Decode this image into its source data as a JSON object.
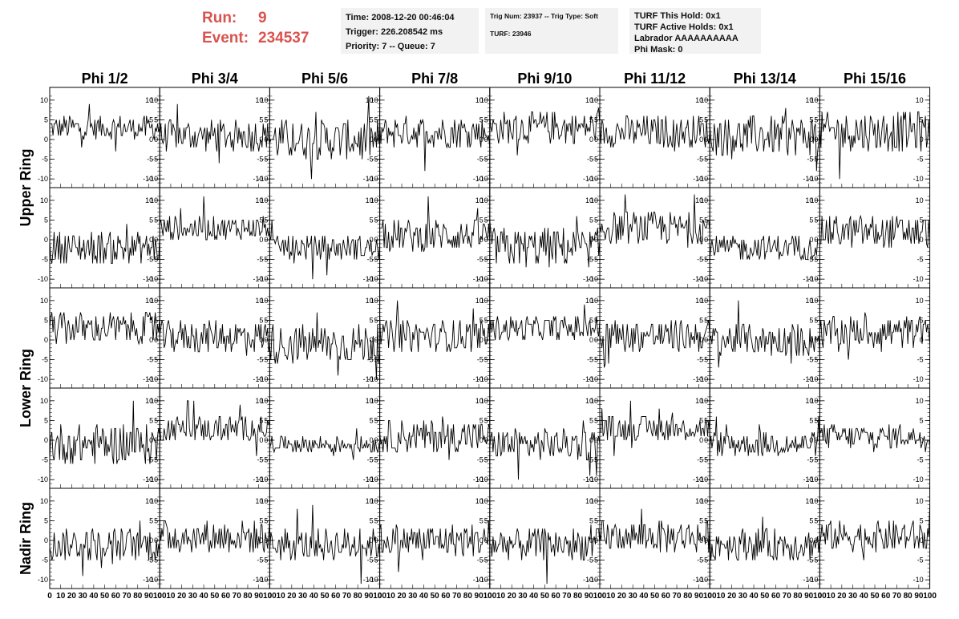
{
  "header": {
    "run_label": "Run:",
    "run_value": "9",
    "event_label": "Event:",
    "event_value": "234537",
    "time": "Time: 2008-12-20 00:46:04",
    "trigger": "Trigger: 226.208542 ms",
    "priority": "Priority: 7 -- Queue: 7",
    "trig_num": "Trig Num: 23937 -- Trig Type: Soft",
    "turf": "TURF: 23946",
    "turf_this_hold": "TURF This Hold: 0x1",
    "turf_active_holds": "TURF Active Holds: 0x1",
    "labrador": "Labrador AAAAAAAAAA",
    "phi_mask": "Phi Mask: 0"
  },
  "columns": [
    "Phi 1/2",
    "Phi 3/4",
    "Phi 5/6",
    "Phi 7/8",
    "Phi 9/10",
    "Phi 11/12",
    "Phi 13/14",
    "Phi 15/16"
  ],
  "row_groups": [
    {
      "label": "Upper Ring",
      "rows": 2
    },
    {
      "label": "Lower Ring",
      "rows": 2
    },
    {
      "label": "Nadir Ring",
      "rows": 1
    }
  ],
  "chart_data": {
    "type": "line",
    "panels_rows": 5,
    "panels_cols": 8,
    "xlim": [
      0,
      100
    ],
    "ylim": [
      -12,
      12
    ],
    "y_ticks": [
      -10,
      -5,
      0,
      5,
      10
    ],
    "x_ticks": [
      0,
      10,
      20,
      30,
      40,
      50,
      60,
      70,
      80,
      90,
      100
    ],
    "x_tick_labels": [
      "0",
      "10",
      "20",
      "30",
      "40",
      "50",
      "60",
      "70",
      "80",
      "90",
      "100"
    ],
    "baselines": [
      [
        3,
        1,
        0,
        2,
        3,
        2,
        1,
        2
      ],
      [
        -2,
        3,
        -2,
        1,
        -2,
        3,
        -2,
        2
      ],
      [
        3,
        1,
        -1,
        1,
        3,
        1,
        0,
        2
      ],
      [
        -1,
        3,
        -1,
        1,
        -1,
        3,
        -1,
        1
      ],
      [
        -1,
        1,
        -1,
        0,
        -1,
        1,
        -1,
        1
      ]
    ],
    "amplitude": [
      [
        3,
        4,
        5,
        4,
        4,
        4,
        5,
        5
      ],
      [
        4,
        3,
        3,
        4,
        5,
        4,
        3,
        4
      ],
      [
        4,
        4,
        5,
        4,
        3,
        4,
        4,
        4
      ],
      [
        5,
        3,
        2,
        4,
        4,
        3,
        3,
        3
      ],
      [
        4,
        4,
        4,
        4,
        4,
        4,
        4,
        4
      ]
    ],
    "samples_per_trace": 100
  }
}
